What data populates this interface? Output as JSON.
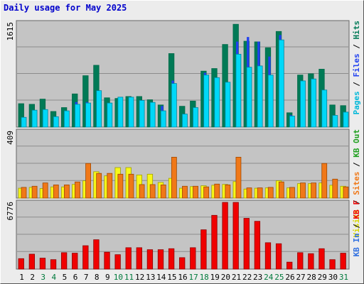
{
  "title": "Daily usage for May 2025",
  "colors": {
    "pages": "#00d8f8",
    "pages_side": "#0088a0",
    "files": "#2040f0",
    "hits": "#006a48",
    "hits_fill": "#007a56",
    "sites": "#f07818",
    "sites_side": "#a04800",
    "visits": "#f8f818",
    "visits_side": "#a0a000",
    "kbin": "#3070e0",
    "kbout": "#f07818",
    "kbf": "#f00000",
    "weekend_day": "#007a3c",
    "weekday_day": "#000000",
    "panel_bg": "#c4c4c4",
    "title": "#0000cc"
  },
  "right_legends": [
    {
      "parts": [
        {
          "text": "Pages",
          "color": "#00b8d8"
        },
        {
          "text": " / ",
          "color": "#000000"
        },
        {
          "text": "Files",
          "color": "#2040f0"
        },
        {
          "text": " / ",
          "color": "#000000"
        },
        {
          "text": "Hits",
          "color": "#007a56"
        }
      ]
    },
    {
      "parts": [
        {
          "text": "Visits",
          "color": "#d8d800"
        },
        {
          "text": " / ",
          "color": "#000000"
        },
        {
          "text": "Sites",
          "color": "#f07818"
        },
        {
          "text": " / ",
          "color": "#000000"
        },
        {
          "text": "KB Out",
          "color": "#20a020"
        }
      ]
    },
    {
      "parts": [
        {
          "text": "KB In",
          "color": "#3070e0"
        },
        {
          "text": " / ",
          "color": "#000000"
        },
        {
          "text": "KB F",
          "color": "#f00000"
        }
      ]
    }
  ],
  "chart_data": [
    {
      "type": "bar",
      "title": "Daily usage for May 2025",
      "ymax_label": "1615",
      "ylim": [
        0,
        1615
      ],
      "categories": [
        "1",
        "2",
        "3",
        "4",
        "5",
        "6",
        "7",
        "8",
        "9",
        "10",
        "11",
        "12",
        "13",
        "14",
        "15",
        "16",
        "17",
        "18",
        "19",
        "20",
        "21",
        "22",
        "23",
        "24",
        "25",
        "26",
        "27",
        "28",
        "29",
        "30",
        "31"
      ],
      "weekend": [
        "3",
        "4",
        "10",
        "11",
        "17",
        "18",
        "24",
        "25",
        "31"
      ],
      "series": [
        {
          "name": "Hits",
          "values": [
            360,
            350,
            430,
            240,
            300,
            510,
            790,
            950,
            450,
            440,
            470,
            470,
            420,
            340,
            1130,
            320,
            400,
            860,
            900,
            1270,
            1580,
            1320,
            1310,
            1220,
            1470,
            220,
            800,
            820,
            890,
            340,
            330
          ]
        },
        {
          "name": "Files",
          "values": [
            100,
            120,
            180,
            90,
            150,
            380,
            380,
            380,
            260,
            320,
            320,
            340,
            340,
            320,
            710,
            170,
            260,
            830,
            540,
            640,
            1310,
            1380,
            1310,
            1080,
            1410,
            180,
            620,
            520,
            390,
            120,
            180
          ]
        },
        {
          "name": "Pages",
          "values": [
            150,
            260,
            270,
            160,
            250,
            350,
            370,
            560,
            370,
            460,
            460,
            410,
            380,
            250,
            670,
            200,
            300,
            800,
            760,
            690,
            1120,
            920,
            940,
            800,
            1340,
            170,
            710,
            740,
            570,
            180,
            230
          ]
        }
      ]
    },
    {
      "type": "bar",
      "ymax_label": "409",
      "ylim": [
        0,
        409
      ],
      "categories": [
        "1",
        "2",
        "3",
        "4",
        "5",
        "6",
        "7",
        "8",
        "9",
        "10",
        "11",
        "12",
        "13",
        "14",
        "15",
        "16",
        "17",
        "18",
        "19",
        "20",
        "21",
        "22",
        "23",
        "24",
        "25",
        "26",
        "27",
        "28",
        "29",
        "30",
        "31"
      ],
      "series": [
        {
          "name": "Visits",
          "values": [
            60,
            65,
            58,
            68,
            68,
            83,
            105,
            160,
            135,
            185,
            185,
            140,
            145,
            95,
            120,
            60,
            70,
            75,
            78,
            83,
            100,
            55,
            60,
            62,
            105,
            62,
            88,
            88,
            92,
            78,
            72
          ]
        },
        {
          "name": "Sites",
          "values": [
            65,
            72,
            92,
            80,
            80,
            98,
            210,
            150,
            150,
            145,
            145,
            82,
            82,
            80,
            248,
            72,
            72,
            68,
            85,
            80,
            248,
            62,
            62,
            65,
            98,
            65,
            92,
            92,
            210,
            115,
            68
          ]
        }
      ]
    },
    {
      "type": "bar",
      "ymax_label": "6776",
      "ylim": [
        0,
        6776
      ],
      "categories": [
        "1",
        "2",
        "3",
        "4",
        "5",
        "6",
        "7",
        "8",
        "9",
        "10",
        "11",
        "12",
        "13",
        "14",
        "15",
        "16",
        "17",
        "18",
        "19",
        "20",
        "21",
        "22",
        "23",
        "24",
        "25",
        "26",
        "27",
        "28",
        "29",
        "30",
        "31"
      ],
      "series": [
        {
          "name": "KB F",
          "values": [
            1050,
            1500,
            1100,
            950,
            1650,
            1600,
            2350,
            2950,
            1700,
            1450,
            2150,
            2150,
            1950,
            1950,
            2050,
            1150,
            2150,
            3950,
            5400,
            6700,
            6700,
            5100,
            4800,
            2650,
            2550,
            700,
            1650,
            1550,
            2050,
            950,
            1600
          ]
        }
      ]
    }
  ]
}
